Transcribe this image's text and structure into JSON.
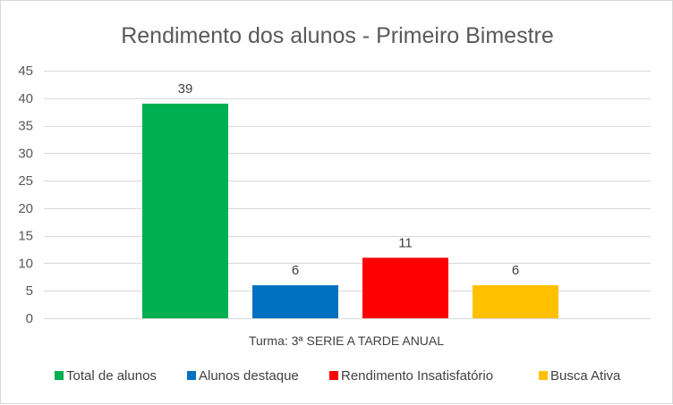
{
  "chart_data": {
    "type": "bar",
    "title": "Rendimento dos alunos - Primeiro Bimestre",
    "xlabel": "",
    "ylabel": "",
    "category": "Turma:  3ª SERIE A TARDE ANUAL",
    "ylim": [
      0,
      45
    ],
    "yticks": [
      0,
      5,
      10,
      15,
      20,
      25,
      30,
      35,
      40,
      45
    ],
    "grid": true,
    "legend_position": "bottom",
    "series": [
      {
        "name": "Total de alunos",
        "value": 39,
        "color": "#00b050"
      },
      {
        "name": "Alunos destaque",
        "value": 6,
        "color": "#0070c0"
      },
      {
        "name": "Rendimento Insatisfatório",
        "value": 11,
        "color": "#ff0000"
      },
      {
        "name": "Busca Ativa",
        "value": 6,
        "color": "#ffc000"
      }
    ]
  }
}
